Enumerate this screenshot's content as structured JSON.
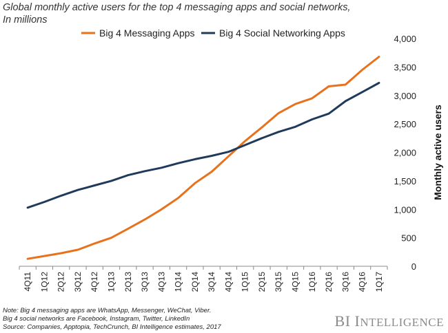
{
  "title": {
    "line1": "Global monthly active users for the top 4 messaging apps and social networks,",
    "line2": "In millions"
  },
  "notes": {
    "line1": "Note: Big 4 messaging apps are WhatsApp, Messenger, WeChat, Viber.",
    "line2": "Big 4 social networks are Facebook, Instagram, Twitter, LinkedIn",
    "line3": "Source: Companies,  Apptopia, TechCrunch,  BI Intelligence estimates, 2017"
  },
  "brand": {
    "first": "BI",
    "second_initial": "I",
    "second_rest": "NTELLIGENCE"
  },
  "chart_data": {
    "type": "line",
    "title": "Global monthly active users for the top 4 messaging apps and social networks, In millions",
    "xlabel": "",
    "ylabel": "Monthly active users",
    "ylim": [
      0,
      4000
    ],
    "yticks": [
      0,
      500,
      1000,
      1500,
      2000,
      2500,
      3000,
      3500,
      4000
    ],
    "ytick_labels": [
      "0",
      "500",
      "1,000",
      "1,500",
      "2,000",
      "2,500",
      "3,000",
      "3,500",
      "4,000"
    ],
    "y_axis_side": "right",
    "legend_position": "top",
    "categories": [
      "4Q11",
      "1Q12",
      "2Q12",
      "3Q12",
      "4Q12",
      "1Q13",
      "2Q13",
      "3Q13",
      "4Q13",
      "1Q14",
      "2Q14",
      "3Q14",
      "4Q14",
      "1Q15",
      "2Q15",
      "3Q15",
      "4Q15",
      "1Q16",
      "2Q16",
      "3Q16",
      "4Q16",
      "1Q17"
    ],
    "series": [
      {
        "name": "Big 4 Messaging Apps",
        "color": "#e8711c",
        "values": [
          130,
          180,
          230,
          290,
          400,
          500,
          660,
          820,
          1000,
          1200,
          1460,
          1660,
          1930,
          2200,
          2440,
          2690,
          2850,
          2950,
          3160,
          3190,
          3450,
          3680
        ]
      },
      {
        "name": "Big 4 Social Networking Apps",
        "color": "#1f3a5a",
        "values": [
          1030,
          1130,
          1240,
          1340,
          1420,
          1500,
          1600,
          1670,
          1730,
          1810,
          1880,
          1940,
          2010,
          2130,
          2250,
          2360,
          2450,
          2580,
          2680,
          2900,
          3060,
          3220
        ]
      }
    ]
  }
}
